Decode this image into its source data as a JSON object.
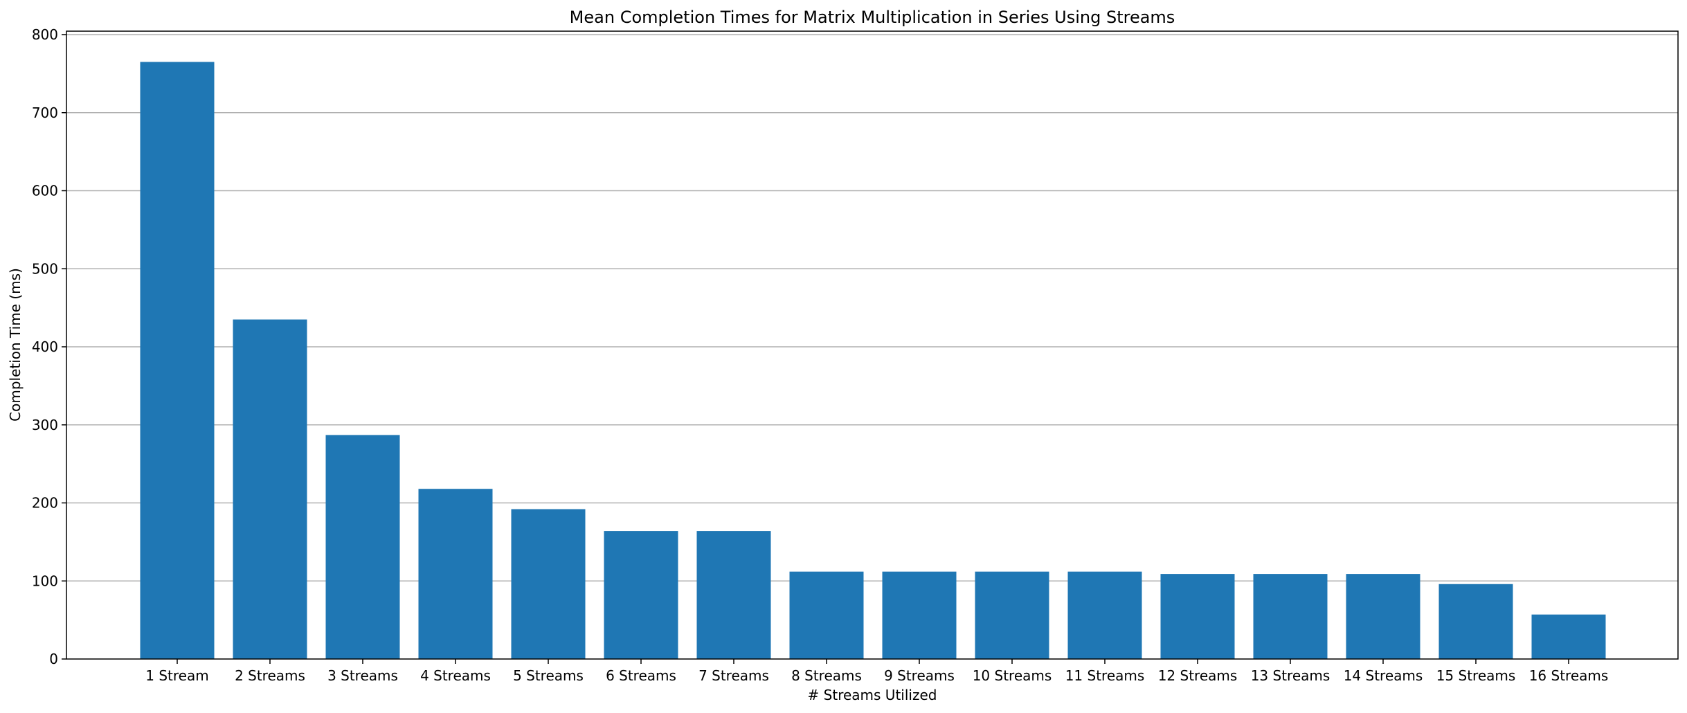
{
  "chart_data": {
    "type": "bar",
    "title": "Mean Completion Times for Matrix Multiplication in Series Using Streams",
    "xlabel": "# Streams Utilized",
    "ylabel": "Completion Time (ms)",
    "categories": [
      "1 Stream",
      "2 Streams",
      "3 Streams",
      "4 Streams",
      "5 Streams",
      "6 Streams",
      "7 Streams",
      "8 Streams",
      "9 Streams",
      "10 Streams",
      "11 Streams",
      "12 Streams",
      "13 Streams",
      "14 Streams",
      "15 Streams",
      "16 Streams"
    ],
    "values": [
      765,
      435,
      287,
      218,
      192,
      164,
      164,
      112,
      112,
      112,
      112,
      109,
      109,
      109,
      96,
      57
    ],
    "ylim": [
      0,
      800
    ],
    "yticks": [
      0,
      100,
      200,
      300,
      400,
      500,
      600,
      700,
      800
    ],
    "grid": "y-axis horizontal lines",
    "bar_color": "#1f77b4"
  }
}
